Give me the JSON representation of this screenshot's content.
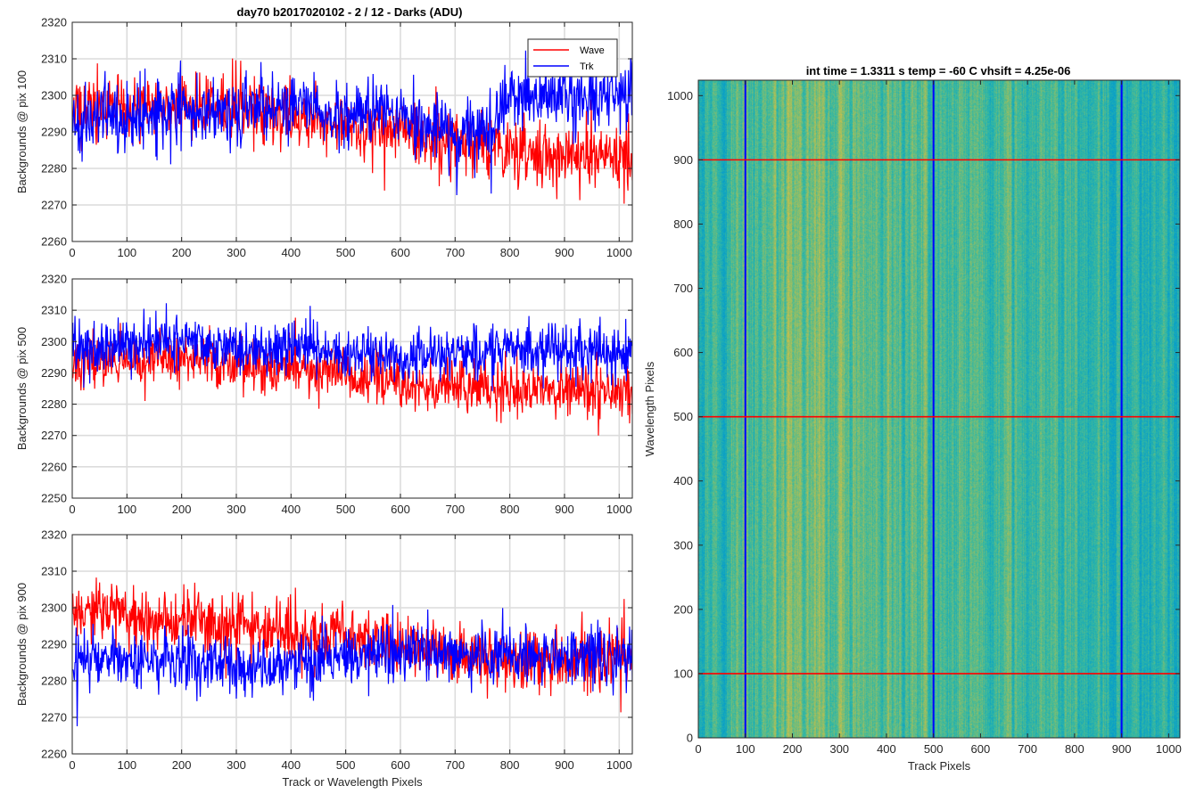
{
  "figure": {
    "left_title": "day70 b2017020102 - 2 / 12 - Darks (ADU)",
    "right_title": "int time = 1.3311 s    temp = -60 C    vhsift = 4.25e-06"
  },
  "chart_data": [
    {
      "type": "line",
      "ylabel": "Backgrounds @ pix 100",
      "xlabel": "",
      "xlim": [
        0,
        1024
      ],
      "ylim": [
        2260,
        2320
      ],
      "xticks": [
        0,
        100,
        200,
        300,
        400,
        500,
        600,
        700,
        800,
        900,
        1000
      ],
      "yticks": [
        2260,
        2270,
        2280,
        2290,
        2300,
        2310,
        2320
      ],
      "grid": true,
      "legend": "top-right",
      "series": [
        {
          "name": "Wave",
          "color": "#ff0000",
          "anchors": [
            [
              0,
              2296
            ],
            [
              100,
              2297
            ],
            [
              200,
              2297
            ],
            [
              300,
              2296
            ],
            [
              400,
              2295
            ],
            [
              500,
              2292
            ],
            [
              600,
              2290
            ],
            [
              700,
              2286
            ],
            [
              800,
              2285
            ],
            [
              900,
              2283
            ],
            [
              1024,
              2283
            ]
          ],
          "noise": 5.5,
          "seed": 11
        },
        {
          "name": "Trk",
          "color": "#0000ff",
          "anchors": [
            [
              0,
              2294
            ],
            [
              100,
              2294
            ],
            [
              200,
              2295
            ],
            [
              300,
              2295
            ],
            [
              400,
              2298
            ],
            [
              500,
              2296
            ],
            [
              600,
              2295
            ],
            [
              700,
              2290
            ],
            [
              760,
              2290
            ],
            [
              800,
              2300
            ],
            [
              900,
              2300
            ],
            [
              1024,
              2300
            ]
          ],
          "noise": 5.5,
          "seed": 23
        }
      ]
    },
    {
      "type": "line",
      "ylabel": "Backgrounds @ pix 500",
      "xlabel": "",
      "xlim": [
        0,
        1024
      ],
      "ylim": [
        2250,
        2320
      ],
      "xticks": [
        0,
        100,
        200,
        300,
        400,
        500,
        600,
        700,
        800,
        900,
        1000
      ],
      "yticks": [
        2250,
        2260,
        2270,
        2280,
        2290,
        2300,
        2310,
        2320
      ],
      "grid": true,
      "series": [
        {
          "name": "Wave",
          "color": "#ff0000",
          "anchors": [
            [
              0,
              2294
            ],
            [
              100,
              2294
            ],
            [
              200,
              2294
            ],
            [
              300,
              2292
            ],
            [
              400,
              2292
            ],
            [
              500,
              2290
            ],
            [
              600,
              2286
            ],
            [
              700,
              2285
            ],
            [
              800,
              2285
            ],
            [
              900,
              2284
            ],
            [
              1024,
              2284
            ]
          ],
          "noise": 5,
          "seed": 37
        },
        {
          "name": "Trk",
          "color": "#0000ff",
          "anchors": [
            [
              0,
              2298
            ],
            [
              100,
              2299
            ],
            [
              200,
              2301
            ],
            [
              300,
              2298
            ],
            [
              400,
              2297
            ],
            [
              500,
              2296
            ],
            [
              600,
              2295
            ],
            [
              700,
              2296
            ],
            [
              800,
              2297
            ],
            [
              900,
              2297
            ],
            [
              1024,
              2296
            ]
          ],
          "noise": 5,
          "seed": 41
        }
      ]
    },
    {
      "type": "line",
      "ylabel": "Backgrounds @ pix 900",
      "xlabel": "Track or Wavelength Pixels",
      "xlim": [
        0,
        1024
      ],
      "ylim": [
        2260,
        2320
      ],
      "xticks": [
        0,
        100,
        200,
        300,
        400,
        500,
        600,
        700,
        800,
        900,
        1000
      ],
      "yticks": [
        2260,
        2270,
        2280,
        2290,
        2300,
        2310,
        2320
      ],
      "grid": true,
      "series": [
        {
          "name": "Wave",
          "color": "#ff0000",
          "anchors": [
            [
              0,
              2300
            ],
            [
              100,
              2298
            ],
            [
              200,
              2296
            ],
            [
              300,
              2295
            ],
            [
              400,
              2292
            ],
            [
              500,
              2293
            ],
            [
              600,
              2290
            ],
            [
              700,
              2287
            ],
            [
              800,
              2285
            ],
            [
              900,
              2286
            ],
            [
              1024,
              2287
            ]
          ],
          "noise": 5.5,
          "seed": 53
        },
        {
          "name": "Trk",
          "color": "#0000ff",
          "anchors": [
            [
              0,
              2286
            ],
            [
              100,
              2285
            ],
            [
              200,
              2286
            ],
            [
              300,
              2284
            ],
            [
              400,
              2285
            ],
            [
              500,
              2287
            ],
            [
              600,
              2288
            ],
            [
              700,
              2287
            ],
            [
              800,
              2287
            ],
            [
              900,
              2287
            ],
            [
              1024,
              2287
            ]
          ],
          "noise": 5,
          "seed": 67
        }
      ]
    },
    {
      "type": "heatmap",
      "xlabel": "Track Pixels",
      "ylabel": "Wavelength Pixels",
      "xlim": [
        0,
        1024
      ],
      "ylim": [
        0,
        1024
      ],
      "xticks": [
        0,
        100,
        200,
        300,
        400,
        500,
        600,
        700,
        800,
        900,
        1000
      ],
      "yticks": [
        0,
        100,
        200,
        300,
        400,
        500,
        600,
        700,
        800,
        900,
        1000
      ],
      "colormap": "parula",
      "overlay_vertical": {
        "color": "#0000ff",
        "x": [
          100,
          500,
          900
        ]
      },
      "overlay_horizontal": {
        "color": "#ff0000",
        "y": [
          100,
          500,
          900
        ]
      }
    }
  ]
}
